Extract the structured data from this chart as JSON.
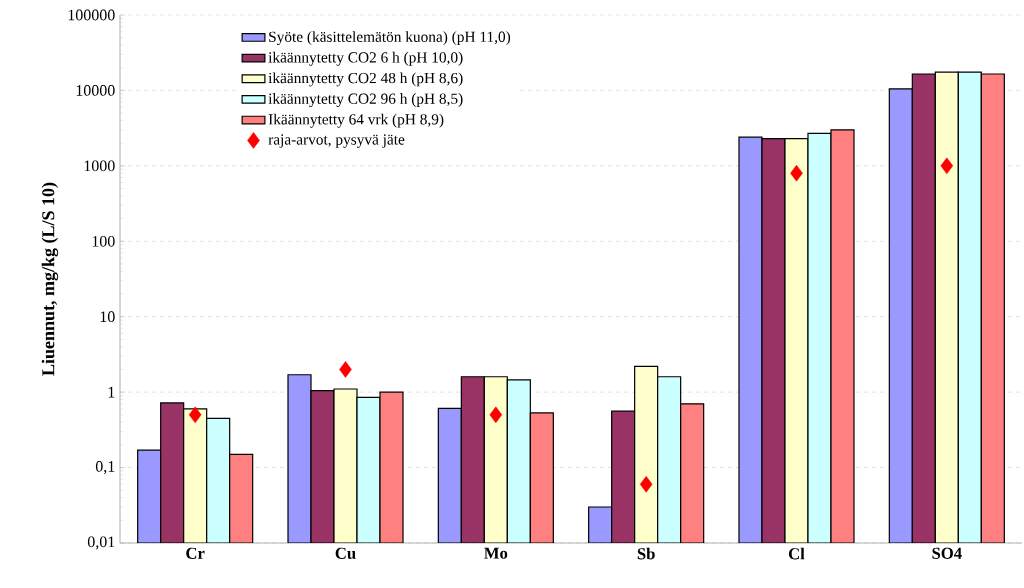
{
  "chart_data": {
    "type": "bar",
    "ylabel": "Liuennut, mg/kg (L/S 10)",
    "categories": [
      "Cr",
      "Cu",
      "Mo",
      "Sb",
      "Cl",
      "SO4"
    ],
    "series": [
      {
        "name": "Syöte (käsittelemätön kuona) (pH 11,0)",
        "color": "#9999ff",
        "values": [
          0.17,
          1.7,
          0.61,
          0.03,
          2400,
          10500
        ]
      },
      {
        "name": "ikäännytetty CO2 6 h (pH 10,0)",
        "color": "#993366",
        "values": [
          0.72,
          1.05,
          1.6,
          0.56,
          2300,
          16500
        ]
      },
      {
        "name": "ikäännytetty CO2 48 h (pH 8,6)",
        "color": "#ffffcc",
        "values": [
          0.6,
          1.1,
          1.6,
          2.2,
          2300,
          17500
        ]
      },
      {
        "name": "ikäännytetty CO2 96 h (pH 8,5)",
        "color": "#ccffff",
        "values": [
          0.45,
          0.85,
          1.45,
          1.6,
          2700,
          17500
        ]
      },
      {
        "name": "Ikäännytetty 64 vrk (pH 8,9)",
        "color": "#ff8080",
        "values": [
          0.15,
          1.0,
          0.53,
          0.7,
          3000,
          16500
        ]
      },
      {
        "name": "raja-arvot, pysyvä jäte",
        "type": "scatter",
        "marker": "diamond",
        "color": "#ff0000",
        "x": [
          "Cr",
          "Cu",
          "Mo",
          "Sb",
          "Cl",
          "SO4"
        ],
        "values": [
          0.5,
          2,
          0.5,
          0.06,
          800,
          1000
        ]
      }
    ],
    "log": "y",
    "ylim": [
      0.01,
      100000
    ],
    "yticks": [
      {
        "value": 0.01,
        "label": "0,01"
      },
      {
        "value": 0.1,
        "label": "0,1"
      },
      1,
      10,
      100,
      1000,
      10000,
      100000
    ],
    "grid": "y",
    "legend": "top left"
  }
}
